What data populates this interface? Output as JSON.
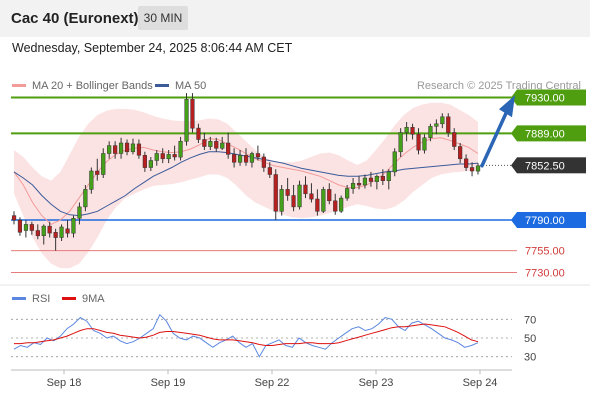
{
  "header": {
    "title": "Cac 40 (Euronext)",
    "interval_label": "30 MIN"
  },
  "timestamp": "Wednesday, September 24, 2025 8:06:44 AM CET",
  "legend": {
    "bollinger_label": "MA 20 + Bollinger Bands",
    "ma50_label": "MA 50",
    "credit": "Research © 2025 Trading Central"
  },
  "rsi_legend": {
    "rsi_label": "RSI",
    "ma9_label": "9MA"
  },
  "colors": {
    "up_candle": "#45a019",
    "down_candle": "#b72020",
    "band_fill": "#fcdede",
    "ma20": "#f39a9a",
    "ma50": "#3a5a9a",
    "green_level": "#4f9e0f",
    "blue_level": "#1d6be0",
    "red_level": "#e57b7b",
    "current_price": "#333333",
    "forecast_arrow": "#2a65b6",
    "rsi": "#5b87e0",
    "rsi_ma9": "#dd1111"
  },
  "chart_data": [
    {
      "type": "candlestick",
      "x_tick_labels": [
        "Sep 18",
        "Sep 19",
        "Sep 22",
        "Sep 23",
        "Sep 24"
      ],
      "ylim": [
        7710,
        7950
      ],
      "levels": [
        {
          "value": 7930.0,
          "label": "7930.00",
          "style": "green"
        },
        {
          "value": 7889.0,
          "label": "7889.00",
          "style": "green"
        },
        {
          "value": 7852.5,
          "label": "7852.50",
          "style": "current"
        },
        {
          "value": 7790.0,
          "label": "7790.00",
          "style": "blue"
        },
        {
          "value": 7755.0,
          "label": "7755.00",
          "style": "red"
        },
        {
          "value": 7730.0,
          "label": "7730.00",
          "style": "red"
        }
      ],
      "forecast": {
        "from": 7852,
        "to": 7928,
        "direction": "up"
      },
      "series": [
        {
          "name": "MA 20",
          "values": [
            7845,
            7830,
            7810,
            7795,
            7785,
            7790,
            7800,
            7815,
            7830,
            7845,
            7857,
            7865,
            7870,
            7872,
            7873,
            7870,
            7868,
            7867,
            7868,
            7871,
            7876,
            7883,
            7882,
            7877,
            7872,
            7866,
            7860,
            7856,
            7852,
            7850,
            7848,
            7846,
            7843,
            7840,
            7835,
            7830,
            7827,
            7827,
            7830,
            7836,
            7844,
            7855,
            7865,
            7873,
            7879,
            7883,
            7884,
            7881,
            7877,
            7873,
            7866
          ]
        },
        {
          "name": "MA 50",
          "values": [
            7845,
            7838,
            7830,
            7818,
            7808,
            7800,
            7796,
            7795,
            7797,
            7800,
            7806,
            7812,
            7818,
            7826,
            7833,
            7840,
            7845,
            7850,
            7856,
            7861,
            7865,
            7868,
            7868,
            7867,
            7865,
            7863,
            7861,
            7859,
            7857,
            7855,
            7852,
            7849,
            7847,
            7845,
            7843,
            7841,
            7840,
            7840,
            7841,
            7843,
            7845,
            7846,
            7848,
            7849,
            7850,
            7851,
            7852,
            7853,
            7854,
            7854,
            7855
          ]
        },
        {
          "name": "Bollinger Upper",
          "values": [
            7870,
            7862,
            7850,
            7840,
            7835,
            7845,
            7865,
            7885,
            7900,
            7910,
            7915,
            7917,
            7917,
            7916,
            7913,
            7909,
            7906,
            7904,
            7903,
            7903,
            7904,
            7906,
            7905,
            7900,
            7890,
            7880,
            7870,
            7862,
            7857,
            7856,
            7856,
            7858,
            7862,
            7866,
            7867,
            7864,
            7858,
            7853,
            7858,
            7870,
            7883,
            7898,
            7910,
            7918,
            7922,
            7924,
            7924,
            7922,
            7916,
            7910,
            7902
          ]
        },
        {
          "name": "Bollinger Lower",
          "values": [
            7820,
            7795,
            7770,
            7752,
            7740,
            7735,
            7735,
            7740,
            7753,
            7770,
            7790,
            7805,
            7815,
            7820,
            7825,
            7829,
            7830,
            7831,
            7833,
            7836,
            7839,
            7842,
            7842,
            7838,
            7829,
            7818,
            7810,
            7805,
            7800,
            7796,
            7793,
            7792,
            7793,
            7795,
            7798,
            7801,
            7805,
            7808,
            7806,
            7803,
            7802,
            7805,
            7812,
            7822,
            7830,
            7838,
            7842,
            7844,
            7845,
            7846,
            7846
          ]
        },
        {
          "name": "OHLC",
          "points": [
            {
              "o": 7795,
              "h": 7800,
              "l": 7785,
              "c": 7790
            },
            {
              "o": 7790,
              "h": 7793,
              "l": 7772,
              "c": 7776
            },
            {
              "o": 7778,
              "h": 7790,
              "l": 7770,
              "c": 7785
            },
            {
              "o": 7785,
              "h": 7788,
              "l": 7773,
              "c": 7778
            },
            {
              "o": 7778,
              "h": 7785,
              "l": 7768,
              "c": 7772
            },
            {
              "o": 7772,
              "h": 7785,
              "l": 7762,
              "c": 7783
            },
            {
              "o": 7783,
              "h": 7788,
              "l": 7770,
              "c": 7775
            },
            {
              "o": 7776,
              "h": 7780,
              "l": 7755,
              "c": 7770
            },
            {
              "o": 7770,
              "h": 7785,
              "l": 7766,
              "c": 7782
            },
            {
              "o": 7780,
              "h": 7790,
              "l": 7770,
              "c": 7775
            },
            {
              "o": 7775,
              "h": 7795,
              "l": 7770,
              "c": 7792
            },
            {
              "o": 7792,
              "h": 7810,
              "l": 7785,
              "c": 7805
            },
            {
              "o": 7805,
              "h": 7830,
              "l": 7800,
              "c": 7825
            },
            {
              "o": 7825,
              "h": 7850,
              "l": 7820,
              "c": 7846
            },
            {
              "o": 7846,
              "h": 7860,
              "l": 7835,
              "c": 7842
            },
            {
              "o": 7842,
              "h": 7872,
              "l": 7838,
              "c": 7866
            },
            {
              "o": 7866,
              "h": 7880,
              "l": 7860,
              "c": 7875
            },
            {
              "o": 7875,
              "h": 7880,
              "l": 7860,
              "c": 7866
            },
            {
              "o": 7866,
              "h": 7884,
              "l": 7860,
              "c": 7878
            },
            {
              "o": 7878,
              "h": 7882,
              "l": 7864,
              "c": 7868
            },
            {
              "o": 7868,
              "h": 7883,
              "l": 7865,
              "c": 7877
            },
            {
              "o": 7877,
              "h": 7882,
              "l": 7860,
              "c": 7864
            },
            {
              "o": 7864,
              "h": 7868,
              "l": 7845,
              "c": 7850
            },
            {
              "o": 7850,
              "h": 7862,
              "l": 7846,
              "c": 7858
            },
            {
              "o": 7858,
              "h": 7870,
              "l": 7852,
              "c": 7866
            },
            {
              "o": 7866,
              "h": 7872,
              "l": 7855,
              "c": 7860
            },
            {
              "o": 7860,
              "h": 7870,
              "l": 7855,
              "c": 7865
            },
            {
              "o": 7865,
              "h": 7875,
              "l": 7858,
              "c": 7862
            },
            {
              "o": 7862,
              "h": 7885,
              "l": 7858,
              "c": 7880
            },
            {
              "o": 7880,
              "h": 7935,
              "l": 7875,
              "c": 7928
            },
            {
              "o": 7928,
              "h": 7935,
              "l": 7890,
              "c": 7895
            },
            {
              "o": 7895,
              "h": 7900,
              "l": 7878,
              "c": 7882
            },
            {
              "o": 7882,
              "h": 7890,
              "l": 7870,
              "c": 7874
            },
            {
              "o": 7874,
              "h": 7885,
              "l": 7870,
              "c": 7880
            },
            {
              "o": 7880,
              "h": 7884,
              "l": 7868,
              "c": 7872
            },
            {
              "o": 7872,
              "h": 7885,
              "l": 7870,
              "c": 7878
            },
            {
              "o": 7878,
              "h": 7890,
              "l": 7860,
              "c": 7865
            },
            {
              "o": 7865,
              "h": 7872,
              "l": 7850,
              "c": 7856
            },
            {
              "o": 7856,
              "h": 7870,
              "l": 7852,
              "c": 7864
            },
            {
              "o": 7864,
              "h": 7872,
              "l": 7852,
              "c": 7856
            },
            {
              "o": 7856,
              "h": 7868,
              "l": 7850,
              "c": 7866
            },
            {
              "o": 7866,
              "h": 7875,
              "l": 7858,
              "c": 7862
            },
            {
              "o": 7862,
              "h": 7866,
              "l": 7845,
              "c": 7850
            },
            {
              "o": 7850,
              "h": 7856,
              "l": 7838,
              "c": 7842
            },
            {
              "o": 7842,
              "h": 7848,
              "l": 7790,
              "c": 7800
            },
            {
              "o": 7800,
              "h": 7830,
              "l": 7795,
              "c": 7825
            },
            {
              "o": 7825,
              "h": 7838,
              "l": 7812,
              "c": 7818
            },
            {
              "o": 7818,
              "h": 7830,
              "l": 7800,
              "c": 7805
            },
            {
              "o": 7805,
              "h": 7835,
              "l": 7802,
              "c": 7830
            },
            {
              "o": 7830,
              "h": 7840,
              "l": 7815,
              "c": 7820
            },
            {
              "o": 7820,
              "h": 7832,
              "l": 7810,
              "c": 7814
            },
            {
              "o": 7814,
              "h": 7825,
              "l": 7795,
              "c": 7800
            },
            {
              "o": 7800,
              "h": 7828,
              "l": 7798,
              "c": 7825
            },
            {
              "o": 7825,
              "h": 7832,
              "l": 7808,
              "c": 7812
            },
            {
              "o": 7812,
              "h": 7820,
              "l": 7796,
              "c": 7800
            },
            {
              "o": 7800,
              "h": 7818,
              "l": 7798,
              "c": 7815
            },
            {
              "o": 7815,
              "h": 7830,
              "l": 7812,
              "c": 7826
            },
            {
              "o": 7826,
              "h": 7838,
              "l": 7820,
              "c": 7832
            },
            {
              "o": 7832,
              "h": 7840,
              "l": 7825,
              "c": 7830
            },
            {
              "o": 7830,
              "h": 7842,
              "l": 7826,
              "c": 7838
            },
            {
              "o": 7838,
              "h": 7845,
              "l": 7828,
              "c": 7834
            },
            {
              "o": 7834,
              "h": 7842,
              "l": 7825,
              "c": 7840
            },
            {
              "o": 7840,
              "h": 7848,
              "l": 7830,
              "c": 7835
            },
            {
              "o": 7835,
              "h": 7848,
              "l": 7825,
              "c": 7845
            },
            {
              "o": 7845,
              "h": 7872,
              "l": 7840,
              "c": 7868
            },
            {
              "o": 7868,
              "h": 7895,
              "l": 7862,
              "c": 7890
            },
            {
              "o": 7890,
              "h": 7902,
              "l": 7880,
              "c": 7896
            },
            {
              "o": 7896,
              "h": 7900,
              "l": 7882,
              "c": 7888
            },
            {
              "o": 7888,
              "h": 7895,
              "l": 7865,
              "c": 7870
            },
            {
              "o": 7870,
              "h": 7888,
              "l": 7866,
              "c": 7884
            },
            {
              "o": 7884,
              "h": 7900,
              "l": 7880,
              "c": 7897
            },
            {
              "o": 7897,
              "h": 7905,
              "l": 7888,
              "c": 7900
            },
            {
              "o": 7900,
              "h": 7912,
              "l": 7895,
              "c": 7908
            },
            {
              "o": 7908,
              "h": 7912,
              "l": 7885,
              "c": 7890
            },
            {
              "o": 7890,
              "h": 7895,
              "l": 7870,
              "c": 7874
            },
            {
              "o": 7874,
              "h": 7878,
              "l": 7855,
              "c": 7860
            },
            {
              "o": 7860,
              "h": 7865,
              "l": 7846,
              "c": 7850
            },
            {
              "o": 7850,
              "h": 7856,
              "l": 7840,
              "c": 7846
            },
            {
              "o": 7846,
              "h": 7855,
              "l": 7842,
              "c": 7852
            }
          ]
        }
      ]
    },
    {
      "type": "line",
      "ylim": [
        20,
        80
      ],
      "y_ticks": [
        70,
        50,
        30
      ],
      "series": [
        {
          "name": "RSI",
          "values": [
            38,
            42,
            40,
            45,
            43,
            50,
            47,
            52,
            60,
            65,
            72,
            68,
            58,
            55,
            50,
            52,
            47,
            44,
            46,
            50,
            55,
            60,
            75,
            68,
            55,
            50,
            48,
            52,
            50,
            45,
            40,
            45,
            48,
            52,
            45,
            40,
            44,
            30,
            42,
            45,
            48,
            42,
            40,
            50,
            45,
            42,
            40,
            38,
            45,
            50,
            55,
            60,
            62,
            58,
            60,
            65,
            72,
            70,
            62,
            58,
            66,
            68,
            64,
            60,
            55,
            50,
            48,
            45,
            40,
            42,
            45
          ]
        },
        {
          "name": "9MA",
          "values": [
            44,
            44,
            45,
            45,
            46,
            47,
            48,
            50,
            52,
            55,
            58,
            60,
            60,
            58,
            56,
            55,
            53,
            52,
            51,
            50,
            51,
            53,
            56,
            57,
            57,
            56,
            55,
            54,
            53,
            51,
            49,
            48,
            48,
            48,
            47,
            46,
            45,
            43,
            42,
            42,
            43,
            44,
            44,
            44,
            45,
            45,
            44,
            44,
            44,
            45,
            47,
            49,
            51,
            53,
            55,
            57,
            59,
            61,
            62,
            62,
            63,
            64,
            65,
            64,
            63,
            62,
            59,
            56,
            52,
            48,
            46
          ]
        }
      ]
    }
  ]
}
